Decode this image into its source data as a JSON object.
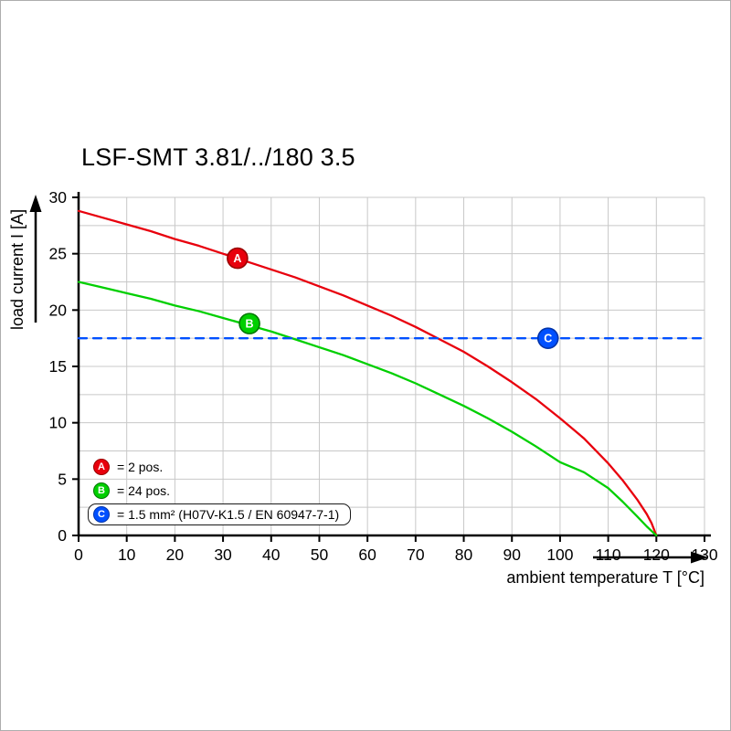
{
  "chart_data": {
    "type": "line",
    "title": "LSF-SMT 3.81/../180 3.5",
    "xlabel": "ambient temperature T [°C]",
    "ylabel": "load current I [A]",
    "xlim": [
      0,
      130
    ],
    "ylim": [
      0,
      30
    ],
    "x_ticks": [
      0,
      10,
      20,
      30,
      40,
      50,
      60,
      70,
      80,
      90,
      100,
      110,
      120,
      130
    ],
    "y_ticks": [
      0,
      5,
      10,
      15,
      20,
      25,
      30
    ],
    "x_grid_step": 10,
    "y_grid_step": 2.5,
    "grid": true,
    "legend_position": "bottom-left-inside",
    "colors": {
      "grid": "#c8c8c8",
      "axis": "#000000"
    },
    "series": [
      {
        "name": "A",
        "label": "2 pos.",
        "color": "#e8000d",
        "edge": "#990000",
        "style": "solid",
        "marker": {
          "x": 33,
          "y": 24.6
        },
        "points": [
          [
            0,
            28.8
          ],
          [
            5,
            28.2
          ],
          [
            10,
            27.6
          ],
          [
            15,
            27.0
          ],
          [
            20,
            26.3
          ],
          [
            25,
            25.7
          ],
          [
            30,
            25.0
          ],
          [
            35,
            24.3
          ],
          [
            40,
            23.6
          ],
          [
            45,
            22.9
          ],
          [
            50,
            22.1
          ],
          [
            55,
            21.3
          ],
          [
            60,
            20.4
          ],
          [
            65,
            19.5
          ],
          [
            70,
            18.5
          ],
          [
            75,
            17.4
          ],
          [
            80,
            16.3
          ],
          [
            85,
            15.0
          ],
          [
            90,
            13.6
          ],
          [
            95,
            12.1
          ],
          [
            100,
            10.4
          ],
          [
            105,
            8.6
          ],
          [
            110,
            6.4
          ],
          [
            113,
            4.9
          ],
          [
            116,
            3.2
          ],
          [
            118,
            1.9
          ],
          [
            119,
            1.1
          ],
          [
            120,
            0
          ]
        ]
      },
      {
        "name": "B",
        "label": "24 pos.",
        "color": "#00cf00",
        "edge": "#007700",
        "style": "solid",
        "marker": {
          "x": 35.5,
          "y": 18.8
        },
        "points": [
          [
            0,
            22.5
          ],
          [
            5,
            22.0
          ],
          [
            10,
            21.5
          ],
          [
            15,
            21.0
          ],
          [
            20,
            20.4
          ],
          [
            25,
            19.9
          ],
          [
            30,
            19.3
          ],
          [
            35,
            18.7
          ],
          [
            40,
            18.1
          ],
          [
            45,
            17.4
          ],
          [
            50,
            16.7
          ],
          [
            55,
            16.0
          ],
          [
            60,
            15.2
          ],
          [
            65,
            14.4
          ],
          [
            70,
            13.5
          ],
          [
            75,
            12.5
          ],
          [
            80,
            11.5
          ],
          [
            85,
            10.4
          ],
          [
            90,
            9.2
          ],
          [
            95,
            7.9
          ],
          [
            100,
            6.5
          ],
          [
            105,
            5.6
          ],
          [
            110,
            4.2
          ],
          [
            113,
            3.0
          ],
          [
            116,
            1.7
          ],
          [
            118,
            0.8
          ],
          [
            119,
            0.4
          ],
          [
            120,
            0
          ]
        ]
      },
      {
        "name": "C",
        "label": "1.5 mm² (H07V-K1.5 / EN 60947-7-1)",
        "color": "#0050ff",
        "edge": "#0033aa",
        "style": "dashed",
        "marker": {
          "x": 97.5,
          "y": 17.5
        },
        "points": [
          [
            0,
            17.5
          ],
          [
            130,
            17.5
          ]
        ]
      }
    ],
    "legend": [
      {
        "key": "A",
        "color": "#e8000d",
        "edge": "#990000",
        "text": "= 2 pos.",
        "boxed": false
      },
      {
        "key": "B",
        "color": "#00cf00",
        "edge": "#007700",
        "text": "= 24 pos.",
        "boxed": false
      },
      {
        "key": "C",
        "color": "#0050ff",
        "edge": "#0033aa",
        "text": "= 1.5 mm² (H07V-K1.5 / EN 60947-7-1)",
        "boxed": true
      }
    ]
  }
}
